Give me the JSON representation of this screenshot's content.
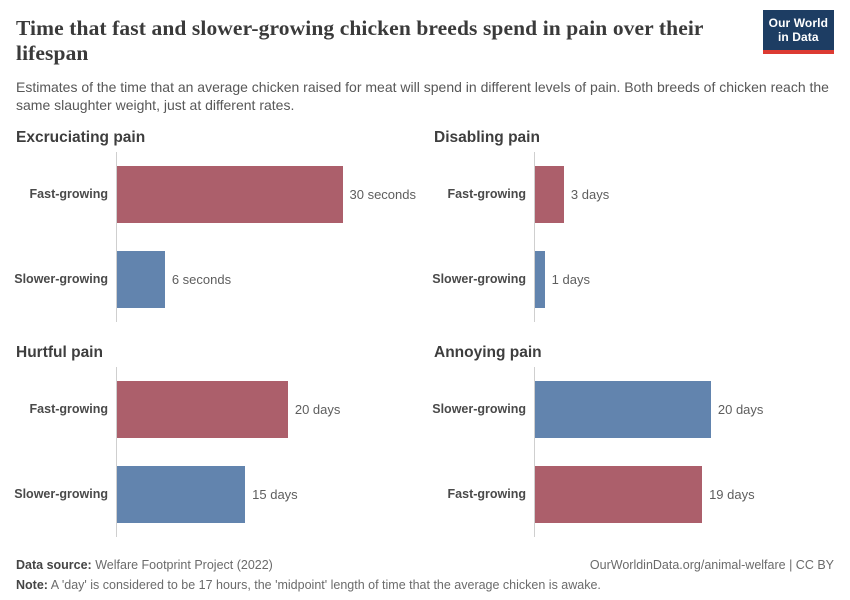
{
  "header": {
    "title": "Time that fast and slower-growing chicken breeds spend in pain over their lifespan",
    "subtitle": "Estimates of the time that an average chicken raised for meat will spend in different levels of pain. Both breeds of chicken reach the same slaughter weight, just at different rates.",
    "logo": {
      "line1": "Our World",
      "line2": "in Data"
    }
  },
  "colors": {
    "series": {
      "fast": "#ac5f6b",
      "slow": "#6284ae"
    },
    "logo_bg": "#1d3d63",
    "logo_accent": "#dc3a32"
  },
  "chart_data": [
    {
      "type": "bar",
      "orientation": "horizontal",
      "title": "Excruciating pain",
      "unit": "seconds",
      "xlim": [
        0,
        37.5
      ],
      "grid": false,
      "bars": [
        {
          "label": "Fast-growing",
          "value": 30,
          "value_label": "30 seconds",
          "series": "fast"
        },
        {
          "label": "Slower-growing",
          "value": 6,
          "value_label": "6 seconds",
          "series": "slow"
        }
      ]
    },
    {
      "type": "bar",
      "orientation": "horizontal",
      "title": "Disabling pain",
      "unit": "days",
      "xlim": [
        0,
        31
      ],
      "grid": false,
      "bars": [
        {
          "label": "Fast-growing",
          "value": 3,
          "value_label": "3 days",
          "series": "fast"
        },
        {
          "label": "Slower-growing",
          "value": 1,
          "value_label": "1 days",
          "series": "slow"
        }
      ]
    },
    {
      "type": "bar",
      "orientation": "horizontal",
      "title": "Hurtful pain",
      "unit": "days",
      "xlim": [
        0,
        35
      ],
      "grid": false,
      "bars": [
        {
          "label": "Fast-growing",
          "value": 20,
          "value_label": "20 days",
          "series": "fast"
        },
        {
          "label": "Slower-growing",
          "value": 15,
          "value_label": "15 days",
          "series": "slow"
        }
      ]
    },
    {
      "type": "bar",
      "orientation": "horizontal",
      "title": "Annoying pain",
      "unit": "days",
      "xlim": [
        0,
        34
      ],
      "grid": false,
      "bars": [
        {
          "label": "Slower-growing",
          "value": 20,
          "value_label": "20 days",
          "series": "slow"
        },
        {
          "label": "Fast-growing",
          "value": 19,
          "value_label": "19 days",
          "series": "fast"
        }
      ]
    }
  ],
  "footer": {
    "datasource_label": "Data source:",
    "datasource_value": "Welfare Footprint Project (2022)",
    "rights": "OurWorldinData.org/animal-welfare | CC BY",
    "note_label": "Note:",
    "note_value": "A 'day' is considered to be 17 hours, the 'midpoint' length of time that the average chicken is awake."
  }
}
